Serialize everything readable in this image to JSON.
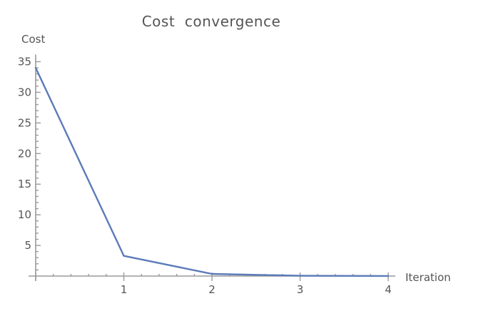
{
  "chart_data": {
    "type": "line",
    "title": "Cost  convergence",
    "xlabel": "Iteration",
    "ylabel": "Cost",
    "xlim": [
      0,
      4
    ],
    "ylim": [
      0,
      35
    ],
    "x_ticks": [
      1,
      2,
      3,
      4
    ],
    "y_ticks": [
      5,
      10,
      15,
      20,
      25,
      30,
      35
    ],
    "x_minor_step": 0.2,
    "y_minor_step": 1,
    "grid": false,
    "legend": "none",
    "series": [
      {
        "x": [
          0,
          1,
          2,
          3,
          4
        ],
        "values": [
          34.0,
          3.3,
          0.35,
          0.05,
          0.01
        ],
        "color": "#5b7bb8"
      }
    ]
  }
}
